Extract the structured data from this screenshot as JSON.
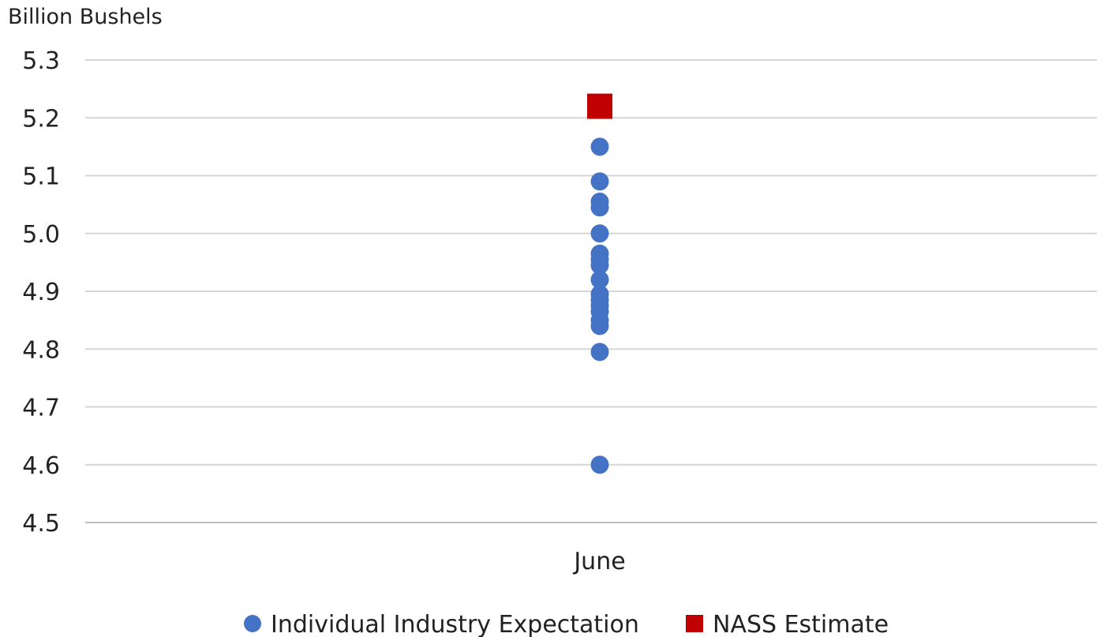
{
  "chart_data": {
    "type": "scatter",
    "title": "",
    "ylabel": "Billion Bushels",
    "xlabel": "",
    "categories": [
      "June"
    ],
    "ylim": [
      4.5,
      5.3
    ],
    "yticks": [
      4.5,
      4.6,
      4.7,
      4.8,
      4.9,
      5.0,
      5.1,
      5.2,
      5.3
    ],
    "yticks_labels": [
      "4.5",
      "4.6",
      "4.7",
      "4.8",
      "4.9",
      "5.0",
      "5.1",
      "5.2",
      "5.3"
    ],
    "grid": true,
    "legend_position": "bottom",
    "series": [
      {
        "name": "Individual Industry Expectation",
        "marker": "circle",
        "color": "#4472C4",
        "category": "June",
        "values": [
          5.15,
          5.09,
          5.055,
          5.045,
          5.0,
          4.965,
          4.955,
          4.945,
          4.92,
          4.895,
          4.885,
          4.875,
          4.865,
          4.85,
          4.84,
          4.795,
          4.6
        ]
      },
      {
        "name": "NASS Estimate",
        "marker": "square",
        "color": "#C00000",
        "category": "June",
        "values": [
          5.22
        ]
      }
    ]
  }
}
